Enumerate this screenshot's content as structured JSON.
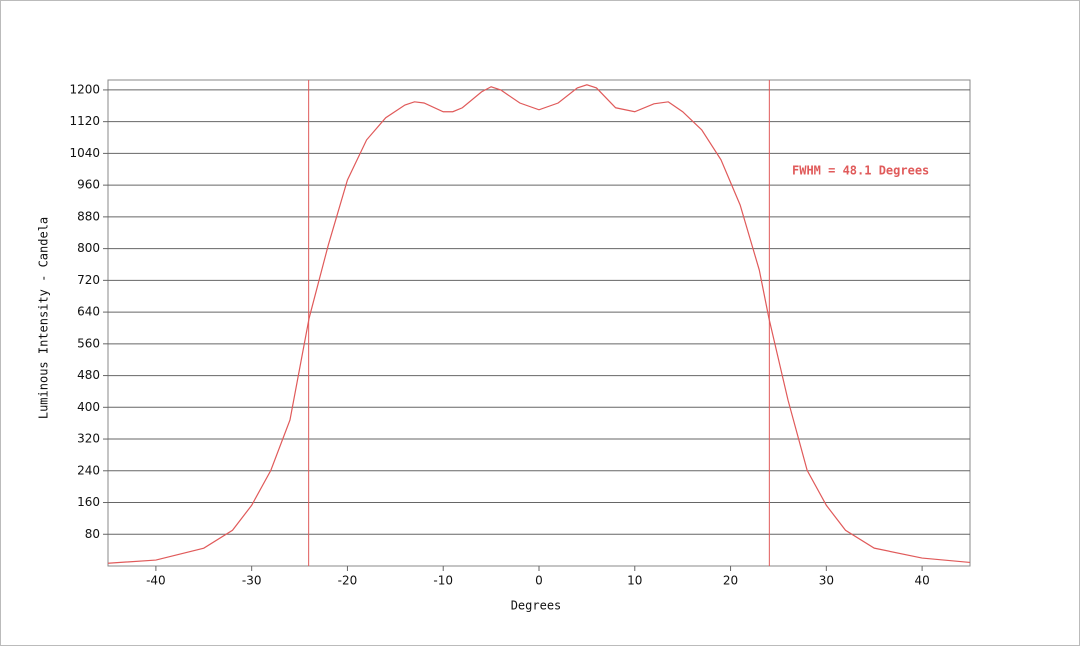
{
  "chart_data": {
    "type": "line",
    "x_label": "Degrees",
    "y_label": "Luminous Intensity - Candela",
    "annotation": "FWHM = 48.1 Degrees",
    "vlines": [
      -24.05,
      24.05
    ],
    "x": [
      -45,
      -40,
      -35,
      -32,
      -30,
      -28,
      -26,
      -24,
      -22,
      -20,
      -18,
      -16,
      -14,
      -13,
      -12,
      -10,
      -9,
      -8,
      -6,
      -5,
      -4,
      -2,
      0,
      2,
      4,
      5,
      6,
      8,
      10,
      12,
      13.5,
      15,
      17,
      19,
      21,
      23,
      24,
      26,
      28,
      30,
      32,
      35,
      40,
      45
    ],
    "series": [
      {
        "name": "Intensity",
        "color": "#e05a5a",
        "values": [
          7,
          15,
          45,
          90,
          153,
          241,
          368,
          625,
          809,
          973,
          1074,
          1130,
          1162,
          1170,
          1167,
          1145,
          1145,
          1155,
          1195,
          1208,
          1200,
          1167,
          1150,
          1167,
          1205,
          1213,
          1205,
          1155,
          1145,
          1165,
          1170,
          1145,
          1099,
          1024,
          910,
          746,
          625,
          418,
          241,
          153,
          90,
          45,
          20,
          9
        ]
      }
    ],
    "xlim": [
      -45,
      45
    ],
    "ylim": [
      0,
      1225
    ],
    "xticks": [
      -40,
      -30,
      -20,
      -10,
      0,
      10,
      20,
      30,
      40
    ],
    "yticks": [
      80,
      160,
      240,
      320,
      400,
      480,
      560,
      640,
      720,
      800,
      880,
      960,
      1040,
      1120,
      1200
    ],
    "grid": true
  }
}
